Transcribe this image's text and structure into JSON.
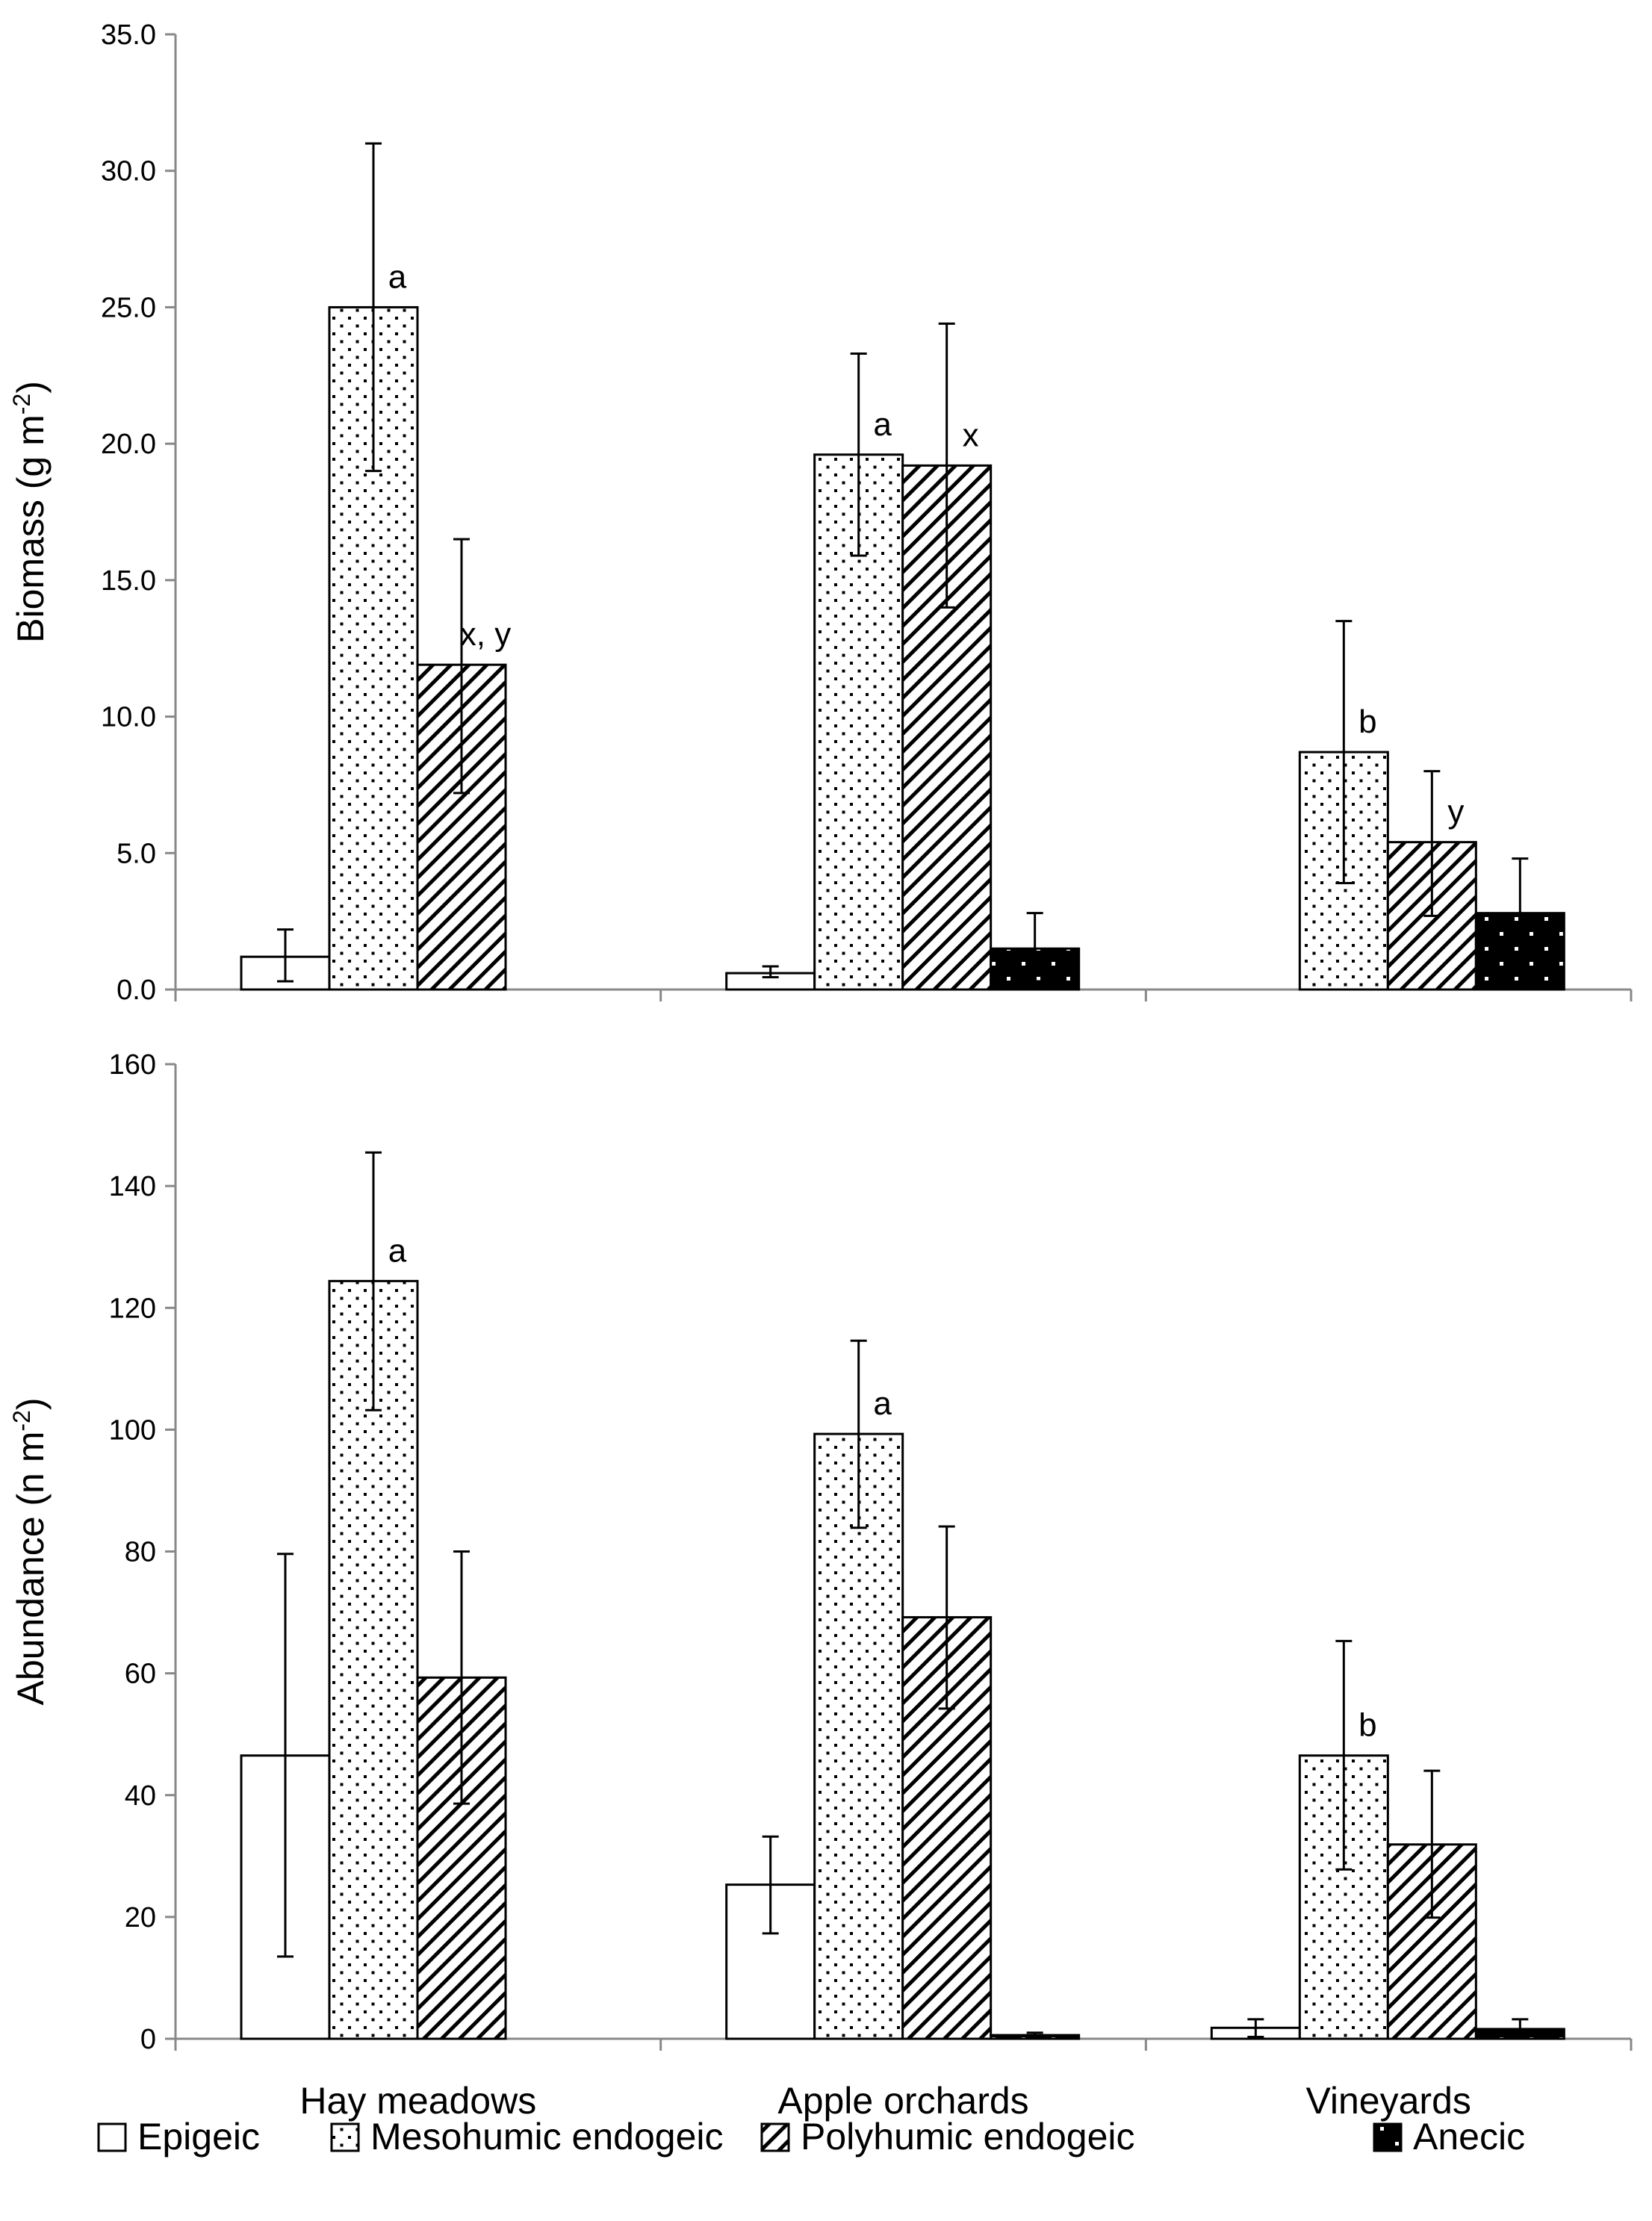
{
  "chart_data": [
    {
      "type": "bar",
      "id": "biomass",
      "title": "",
      "ylabel": "Biomass (g m-2)",
      "ylabel_parts": {
        "main": "Biomass (g m",
        "sup": "-2",
        "close": ")"
      },
      "ylim": [
        0,
        35
      ],
      "yticks": [
        "0.0",
        "5.0",
        "10.0",
        "15.0",
        "20.0",
        "25.0",
        "30.0",
        "35.0"
      ],
      "categories": [
        "Hay meadows",
        "Apple orchards",
        "Vineyards"
      ],
      "series": [
        {
          "name": "Epigeic",
          "values": [
            1.2,
            0.6,
            null
          ],
          "err_low": [
            0.3,
            0.45,
            null
          ],
          "err_high": [
            2.2,
            0.85,
            null
          ],
          "labels": [
            null,
            null,
            null
          ]
        },
        {
          "name": "Mesohumic endogeic",
          "values": [
            25.0,
            19.6,
            8.7
          ],
          "err_low": [
            19.0,
            15.9,
            3.9
          ],
          "err_high": [
            31.0,
            23.3,
            13.5
          ],
          "labels": [
            "a",
            "a",
            "b"
          ]
        },
        {
          "name": "Polyhumic endogeic",
          "values": [
            11.9,
            19.2,
            5.4
          ],
          "err_low": [
            7.2,
            14.0,
            2.7
          ],
          "err_high": [
            16.5,
            24.4,
            8.0
          ],
          "labels": [
            "x, y",
            "x",
            "y"
          ]
        },
        {
          "name": "Anecic",
          "values": [
            null,
            1.5,
            2.8
          ],
          "err_low": [
            null,
            0.3,
            0.7
          ],
          "err_high": [
            null,
            2.8,
            4.8
          ],
          "labels": [
            null,
            null,
            null
          ]
        }
      ]
    },
    {
      "type": "bar",
      "id": "abundance",
      "title": "",
      "ylabel": "Abundance (n m-2)",
      "ylabel_parts": {
        "main": "Abundance (n m",
        "sup": "-2",
        "close": ")"
      },
      "ylim": [
        0,
        160
      ],
      "yticks": [
        "0",
        "20",
        "40",
        "60",
        "80",
        "100",
        "120",
        "140",
        "160"
      ],
      "categories": [
        "Hay meadows",
        "Apple orchards",
        "Vineyards"
      ],
      "series": [
        {
          "name": "Epigeic",
          "values": [
            46.5,
            25.3,
            1.8
          ],
          "err_low": [
            13.5,
            17.3,
            0.3
          ],
          "err_high": [
            79.6,
            33.2,
            3.2
          ],
          "labels": [
            null,
            null,
            null
          ]
        },
        {
          "name": "Mesohumic endogeic",
          "values": [
            124.4,
            99.3,
            46.5
          ],
          "err_low": [
            103.2,
            83.9,
            27.8
          ],
          "err_high": [
            145.5,
            114.6,
            65.3
          ],
          "labels": [
            "a",
            "a",
            "b"
          ]
        },
        {
          "name": "Polyhumic endogeic",
          "values": [
            59.3,
            69.2,
            31.9
          ],
          "err_low": [
            38.6,
            54.2,
            19.9
          ],
          "err_high": [
            80.0,
            84.1,
            44.0
          ],
          "labels": [
            null,
            null,
            null
          ]
        },
        {
          "name": "Anecic",
          "values": [
            null,
            0.6,
            1.6
          ],
          "err_low": [
            null,
            0.2,
            0.4
          ],
          "err_high": [
            null,
            1.0,
            3.2
          ],
          "labels": [
            null,
            null,
            null
          ]
        }
      ]
    }
  ],
  "legend": {
    "placement": "bottom",
    "items": [
      {
        "name": "Epigeic",
        "pattern": "open"
      },
      {
        "name": "Mesohumic endogeic",
        "pattern": "dots"
      },
      {
        "name": "Polyhumic endogeic",
        "pattern": "hatch"
      },
      {
        "name": "Anecic",
        "pattern": "solid-dots"
      }
    ]
  },
  "colors": {
    "axis": "#888888",
    "bar_stroke": "#000000",
    "anecic_fill": "#000000"
  }
}
